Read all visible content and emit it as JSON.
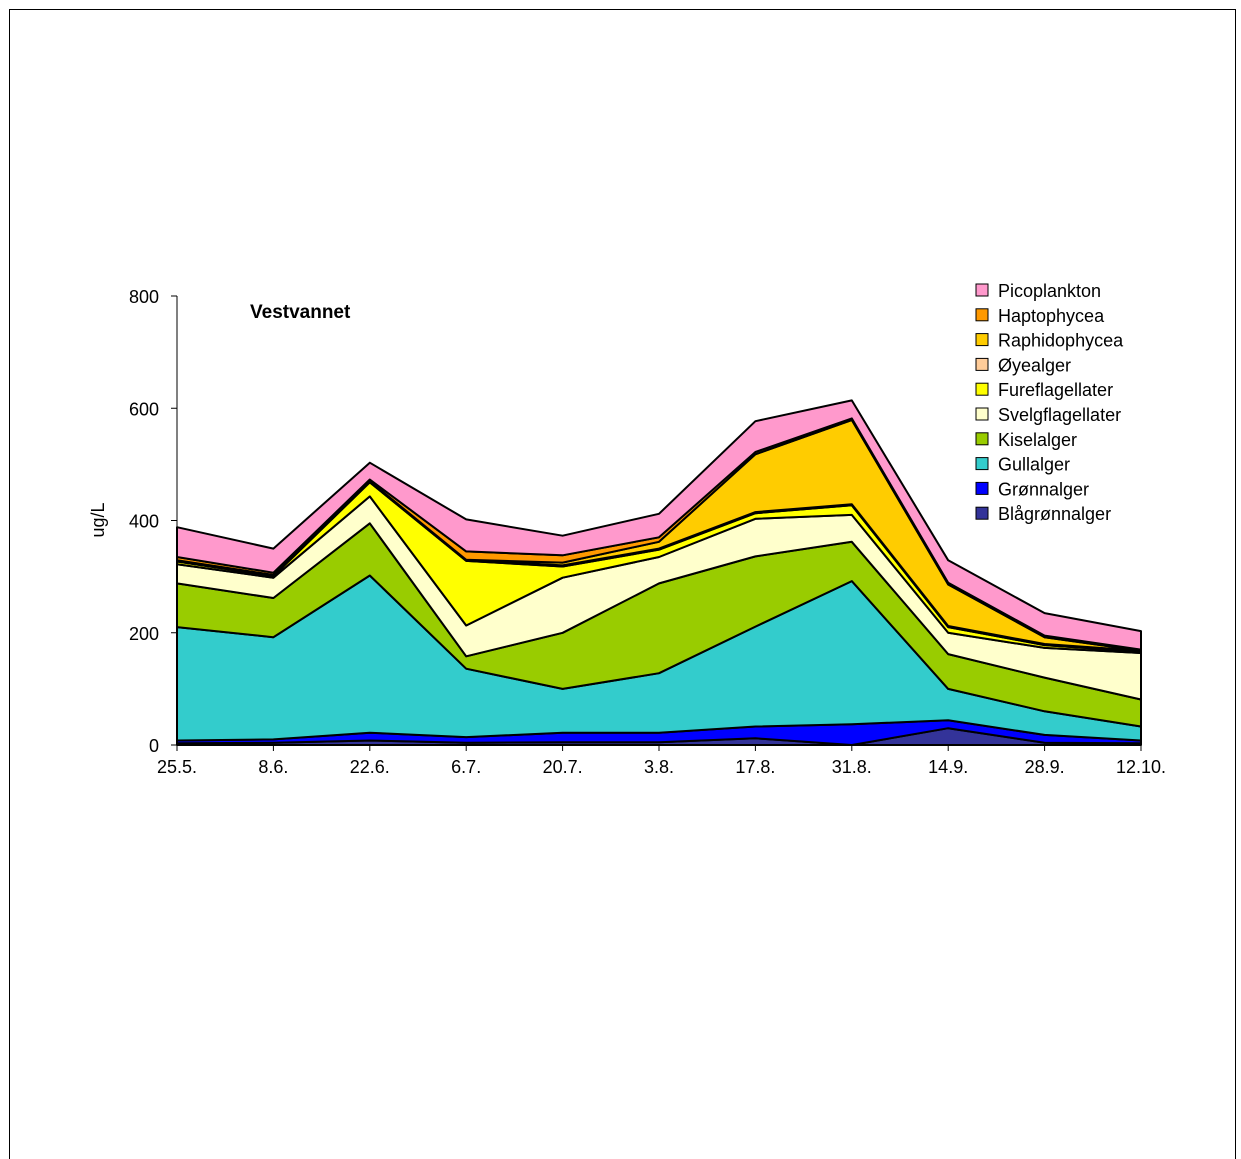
{
  "chart_data": {
    "type": "area",
    "stacked": true,
    "title": "Vestvannet",
    "xlabel": "",
    "ylabel": "ug/L",
    "ylim": [
      0,
      800
    ],
    "yticks": [
      0,
      200,
      400,
      600,
      800
    ],
    "categories": [
      "25.5.",
      "8.6.",
      "22.6.",
      "6.7.",
      "20.7.",
      "3.8.",
      "17.8.",
      "31.8.",
      "14.9.",
      "28.9.",
      "12.10."
    ],
    "legend_position": "top-right",
    "series": [
      {
        "name": "Blågrønnalger",
        "color": "#333399",
        "values": [
          3,
          4,
          8,
          4,
          5,
          5,
          12,
          0,
          30,
          4,
          3
        ]
      },
      {
        "name": "Grønnalger",
        "color": "#0000ff",
        "values": [
          5,
          6,
          14,
          10,
          17,
          17,
          21,
          37,
          14,
          14,
          5
        ]
      },
      {
        "name": "Gullalger",
        "color": "#33cccc",
        "values": [
          202,
          182,
          280,
          122,
          78,
          106,
          178,
          255,
          56,
          42,
          25
        ]
      },
      {
        "name": "Kiselalger",
        "color": "#99cc00",
        "values": [
          78,
          70,
          93,
          22,
          100,
          160,
          125,
          70,
          62,
          60,
          48
        ]
      },
      {
        "name": "Svelgflagellater",
        "color": "#ffffcc",
        "values": [
          34,
          36,
          48,
          55,
          98,
          47,
          67,
          48,
          38,
          53,
          83
        ]
      },
      {
        "name": "Fureflagellater",
        "color": "#ffff00",
        "values": [
          5,
          3,
          25,
          115,
          20,
          13,
          10,
          17,
          10,
          5,
          2
        ]
      },
      {
        "name": "Øyealger",
        "color": "#ffcc99",
        "values": [
          2,
          2,
          2,
          2,
          2,
          2,
          2,
          2,
          2,
          2,
          2
        ]
      },
      {
        "name": "Raphidophycea",
        "color": "#ffcc00",
        "values": [
          0,
          0,
          0,
          0,
          5,
          12,
          103,
          150,
          74,
          12,
          0
        ]
      },
      {
        "name": "Haptophycea",
        "color": "#ff9900",
        "values": [
          6,
          4,
          3,
          15,
          13,
          8,
          4,
          3,
          3,
          3,
          2
        ]
      },
      {
        "name": "Picoplankton",
        "color": "#ff99cc",
        "values": [
          53,
          43,
          30,
          57,
          35,
          42,
          55,
          32,
          40,
          40,
          33
        ]
      }
    ]
  }
}
